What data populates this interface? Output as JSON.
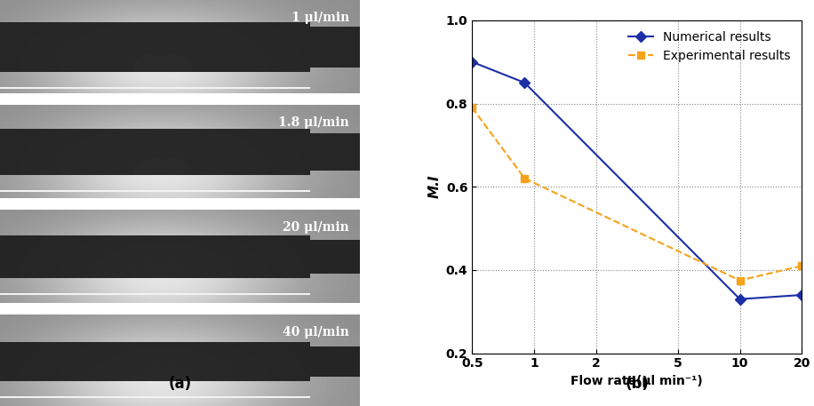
{
  "image_panel": {
    "label": "(a)",
    "captions": [
      "1 μl/min",
      "1.8 μl/min",
      "20 μl/min",
      "40 μl/min"
    ]
  },
  "chart_data": {
    "type": "line",
    "label": "(b)",
    "x_label": "Flow rate(μl min⁻¹)",
    "y_label": "M.I",
    "log": "x",
    "grid": true,
    "legend": "upper right",
    "xlim": [
      0.5,
      20
    ],
    "xticks": [
      0.5,
      1,
      2,
      5,
      10,
      20
    ],
    "ylim": [
      0.2,
      1.0
    ],
    "yticks": [
      0.2,
      0.4,
      0.6,
      0.8,
      1.0
    ],
    "series": [
      {
        "name": "Numerical results",
        "color": "#1c2fa6",
        "marker": "diamond",
        "line_style": "solid",
        "x": [
          0.5,
          0.9,
          10,
          20
        ],
        "values": [
          0.9,
          0.85,
          0.33,
          0.34
        ]
      },
      {
        "name": "Experimental results",
        "color": "#f5a31a",
        "marker": "square",
        "line_style": "dashed",
        "x": [
          0.5,
          0.9,
          10,
          20
        ],
        "values": [
          0.79,
          0.62,
          0.375,
          0.41
        ]
      }
    ]
  }
}
